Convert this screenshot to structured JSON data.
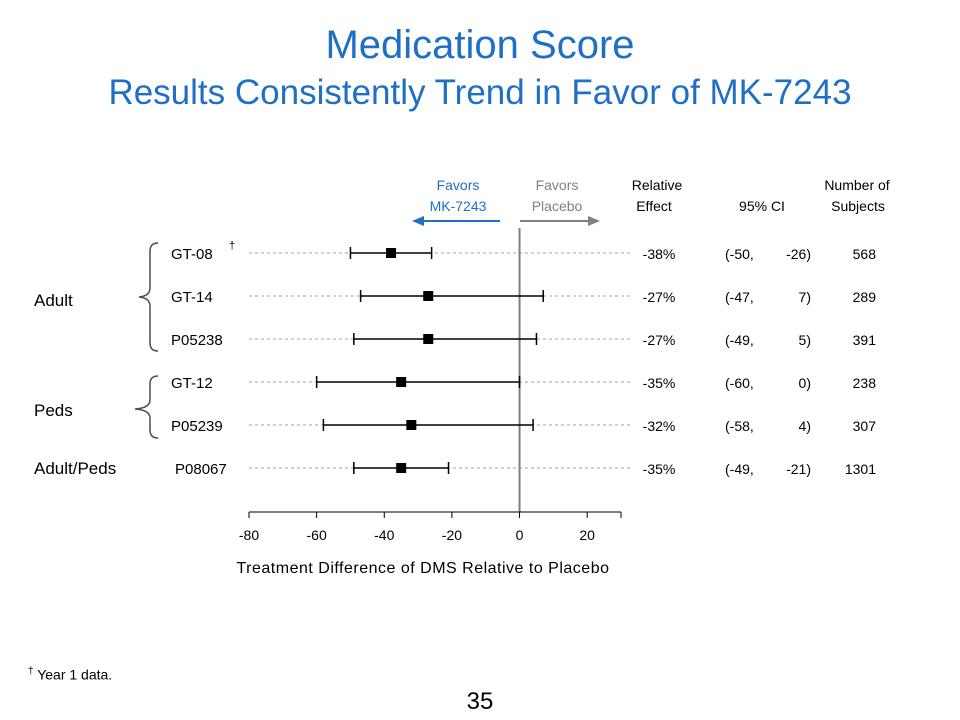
{
  "slide": {
    "title": "Medication Score",
    "subtitle": "Results Consistently Trend in Favor of MK-7243",
    "footnote_mark": "†",
    "footnote_text": " Year 1 data.",
    "page_number": "35"
  },
  "colors": {
    "title": "#1f6fc5",
    "favors_drug": "#1f6fc5",
    "favors_placebo": "#808080",
    "marker": "#000000",
    "grid": "#a0a0a0"
  },
  "chart_data": {
    "type": "forest",
    "xlabel": "Treatment Difference of DMS Relative to Placebo",
    "xlim": [
      -80,
      30
    ],
    "xticks": [
      -80,
      -60,
      -40,
      -20,
      0,
      20
    ],
    "reference_line": 0,
    "headers": {
      "favors_drug_line1": "Favors",
      "favors_drug_line2": "MK-7243",
      "favors_placebo_line1": "Favors",
      "favors_placebo_line2": "Placebo",
      "relative_line1": "Relative",
      "relative_line2": "Effect",
      "ci": "95% CI",
      "n_line1": "Number of",
      "n_line2": "Subjects"
    },
    "groups": [
      {
        "label": "Adult",
        "studies": [
          0,
          1,
          2
        ]
      },
      {
        "label": "Peds",
        "studies": [
          3,
          4
        ]
      },
      {
        "label": "Adult/Peds",
        "studies": [
          5
        ]
      }
    ],
    "studies": [
      {
        "name": "GT-08",
        "mark": "†",
        "effect": -38,
        "low": -50,
        "high": -26,
        "effect_label": "-38%",
        "ci_low": "(-50,",
        "ci_high": "-26)",
        "n": "568"
      },
      {
        "name": "GT-14",
        "mark": "",
        "effect": -27,
        "low": -47,
        "high": 7,
        "effect_label": "-27%",
        "ci_low": "(-47,",
        "ci_high": "7)",
        "n": "289"
      },
      {
        "name": "P05238",
        "mark": "",
        "effect": -27,
        "low": -49,
        "high": 5,
        "effect_label": "-27%",
        "ci_low": "(-49,",
        "ci_high": "5)",
        "n": "391"
      },
      {
        "name": "GT-12",
        "mark": "",
        "effect": -35,
        "low": -60,
        "high": 0,
        "effect_label": "-35%",
        "ci_low": "(-60,",
        "ci_high": "0)",
        "n": "238"
      },
      {
        "name": "P05239",
        "mark": "",
        "effect": -32,
        "low": -58,
        "high": 4,
        "effect_label": "-32%",
        "ci_low": "(-58,",
        "ci_high": "4)",
        "n": "307"
      },
      {
        "name": "P08067",
        "mark": "",
        "effect": -35,
        "low": -49,
        "high": -21,
        "effect_label": "-35%",
        "ci_low": "(-49,",
        "ci_high": "-21)",
        "n": "1301"
      }
    ]
  }
}
